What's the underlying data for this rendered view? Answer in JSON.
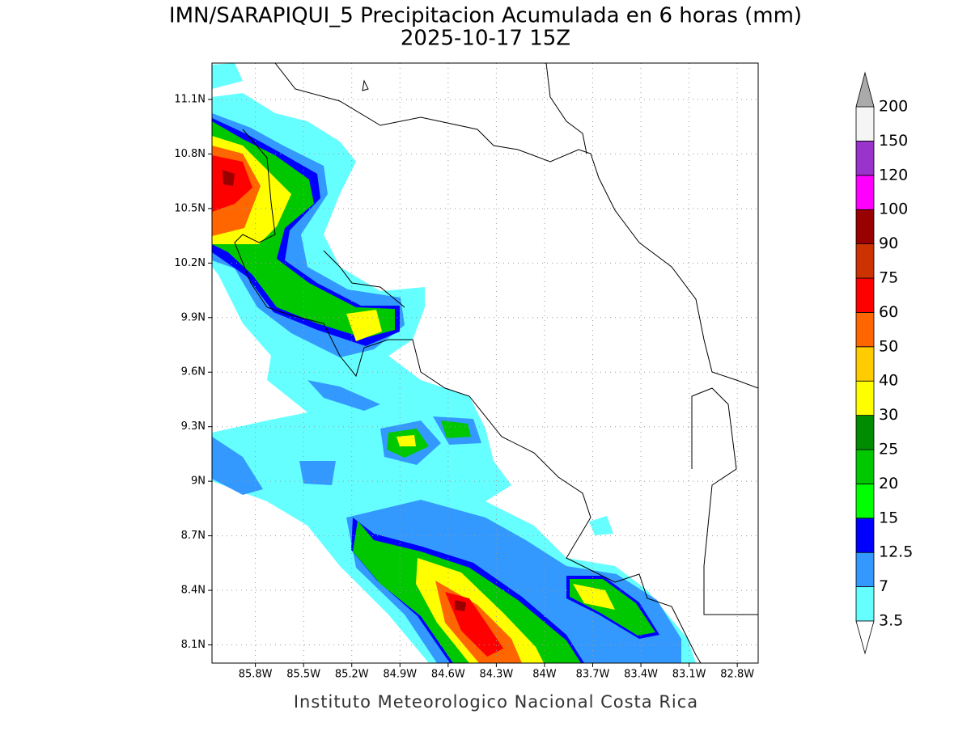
{
  "title": "IMN/SARAPIQUI_5 Precipitacion Acumulada en 6 horas (mm)",
  "subtitle": "2025-10-17 15Z",
  "map": {
    "lon_range": [
      -86.07,
      -82.67
    ],
    "lat_range": [
      8.0,
      11.3
    ],
    "lon_ticks": [
      {
        "value": -85.8,
        "label": "85.8W"
      },
      {
        "value": -85.5,
        "label": "85.5W"
      },
      {
        "value": -85.2,
        "label": "85.2W"
      },
      {
        "value": -84.9,
        "label": "84.9W"
      },
      {
        "value": -84.6,
        "label": "84.6W"
      },
      {
        "value": -84.3,
        "label": "84.3W"
      },
      {
        "value": -84.0,
        "label": "84W"
      },
      {
        "value": -83.7,
        "label": "83.7W"
      },
      {
        "value": -83.4,
        "label": "83.4W"
      },
      {
        "value": -83.1,
        "label": "83.1W"
      },
      {
        "value": -82.8,
        "label": "82.8W"
      }
    ],
    "lat_ticks": [
      {
        "value": 8.1,
        "label": "8.1N"
      },
      {
        "value": 8.4,
        "label": "8.4N"
      },
      {
        "value": 8.7,
        "label": "8.7N"
      },
      {
        "value": 9.0,
        "label": "9N"
      },
      {
        "value": 9.3,
        "label": "9.3N"
      },
      {
        "value": 9.6,
        "label": "9.6N"
      },
      {
        "value": 9.9,
        "label": "9.9N"
      },
      {
        "value": 10.2,
        "label": "10.2N"
      },
      {
        "value": 10.5,
        "label": "10.5N"
      },
      {
        "value": 10.8,
        "label": "10.8N"
      },
      {
        "value": 11.1,
        "label": "11.1N"
      }
    ],
    "grid": true
  },
  "colorbar": {
    "levels": [
      "3.5",
      "7",
      "12.5",
      "15",
      "20",
      "25",
      "30",
      "40",
      "50",
      "60",
      "75",
      "90",
      "100",
      "120",
      "150",
      "200"
    ],
    "colors": [
      "#66ffff",
      "#3399ff",
      "#0000ff",
      "#00ff00",
      "#00c800",
      "#008c00",
      "#ffff00",
      "#ffcc00",
      "#ff6600",
      "#ff0000",
      "#cc3300",
      "#990000",
      "#ff00ff",
      "#9933cc",
      "#f5f5f5"
    ],
    "below_color": "#ffffff",
    "above_color": "#aaaaaa"
  },
  "credit": "Instituto Meteorologico Nacional Costa Rica"
}
